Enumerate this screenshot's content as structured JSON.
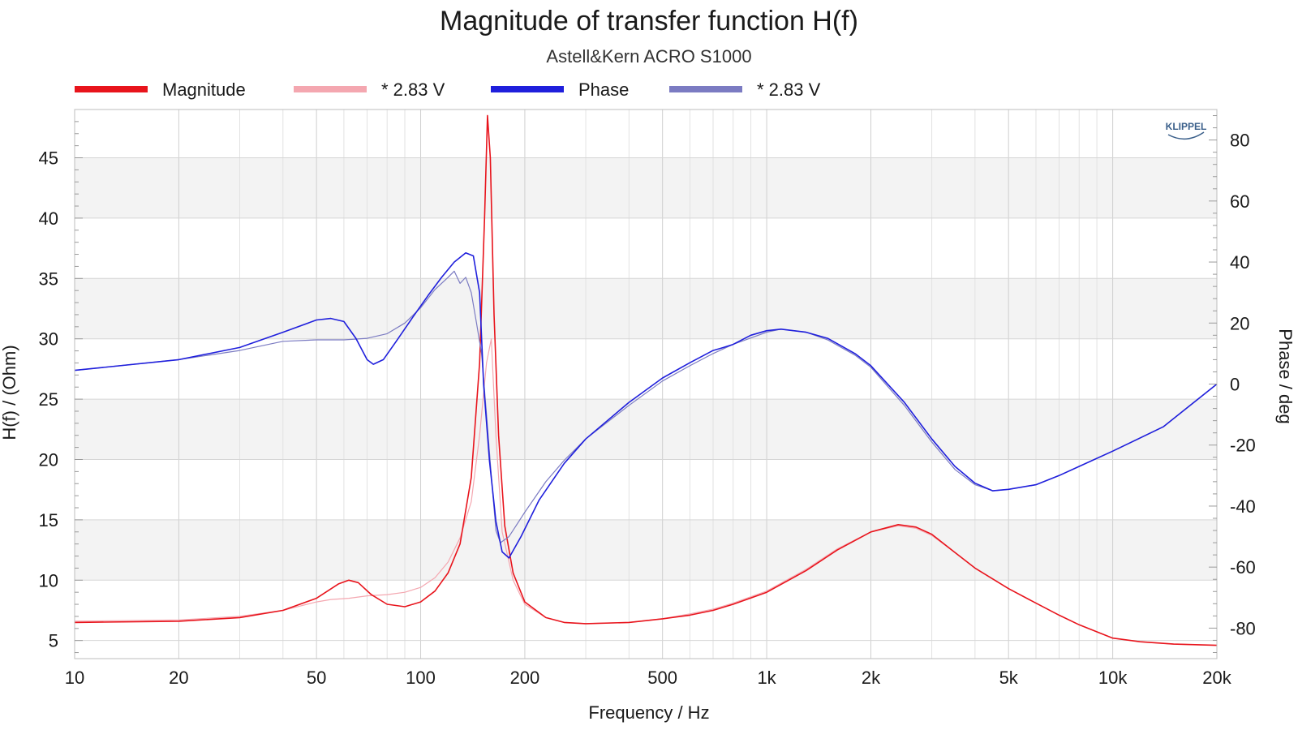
{
  "chart_data": {
    "type": "line",
    "title": "Magnitude of transfer function H(f)",
    "subtitle": "Astell&Kern ACRO S1000",
    "xlabel": "Frequency / Hz",
    "ylabel_left": "H(f) / (Ohm)",
    "ylabel_right": "Phase / deg",
    "x_scale": "log",
    "xlim": [
      10,
      20000
    ],
    "ylim_left": [
      3.5,
      49
    ],
    "ylim_right": [
      -90,
      90
    ],
    "x_ticks": [
      10,
      20,
      50,
      100,
      200,
      500,
      1000,
      2000,
      5000,
      10000,
      20000
    ],
    "x_tick_labels": [
      "10",
      "20",
      "50",
      "100",
      "200",
      "500",
      "1k",
      "2k",
      "5k",
      "10k",
      "20k"
    ],
    "y_ticks_left": [
      5,
      10,
      15,
      20,
      25,
      30,
      35,
      40,
      45
    ],
    "y_ticks_right": [
      -80,
      -60,
      -40,
      -20,
      0,
      20,
      40,
      60,
      80
    ],
    "grid": true,
    "legend_position": "top",
    "logo_text": "KLIPPEL",
    "series": [
      {
        "name": "Magnitude",
        "axis": "left",
        "color": "#e8141c",
        "width": 1.6,
        "points": [
          [
            10,
            6.5
          ],
          [
            20,
            6.6
          ],
          [
            30,
            6.9
          ],
          [
            40,
            7.5
          ],
          [
            50,
            8.5
          ],
          [
            58,
            9.7
          ],
          [
            62,
            10.0
          ],
          [
            66,
            9.8
          ],
          [
            72,
            8.8
          ],
          [
            80,
            8.0
          ],
          [
            90,
            7.8
          ],
          [
            100,
            8.2
          ],
          [
            110,
            9.1
          ],
          [
            120,
            10.6
          ],
          [
            130,
            13.0
          ],
          [
            140,
            18.5
          ],
          [
            148,
            28.0
          ],
          [
            153,
            40.0
          ],
          [
            156,
            48.5
          ],
          [
            159,
            45.0
          ],
          [
            163,
            32.0
          ],
          [
            168,
            22.0
          ],
          [
            175,
            14.5
          ],
          [
            185,
            10.6
          ],
          [
            200,
            8.2
          ],
          [
            230,
            6.9
          ],
          [
            260,
            6.5
          ],
          [
            300,
            6.4
          ],
          [
            400,
            6.5
          ],
          [
            500,
            6.8
          ],
          [
            600,
            7.1
          ],
          [
            700,
            7.5
          ],
          [
            800,
            8.0
          ],
          [
            1000,
            9.0
          ],
          [
            1300,
            10.8
          ],
          [
            1600,
            12.5
          ],
          [
            2000,
            14.0
          ],
          [
            2400,
            14.6
          ],
          [
            2700,
            14.4
          ],
          [
            3000,
            13.8
          ],
          [
            3500,
            12.3
          ],
          [
            4000,
            11.0
          ],
          [
            5000,
            9.3
          ],
          [
            6000,
            8.1
          ],
          [
            7000,
            7.1
          ],
          [
            8000,
            6.3
          ],
          [
            10000,
            5.2
          ],
          [
            12000,
            4.9
          ],
          [
            15000,
            4.7
          ],
          [
            20000,
            4.6
          ]
        ]
      },
      {
        "name": "* 2.83 V",
        "axis": "left",
        "color": "#f4a7b0",
        "width": 1.2,
        "points": [
          [
            10,
            6.6
          ],
          [
            20,
            6.7
          ],
          [
            30,
            7.0
          ],
          [
            40,
            7.5
          ],
          [
            50,
            8.2
          ],
          [
            55,
            8.4
          ],
          [
            62,
            8.5
          ],
          [
            70,
            8.7
          ],
          [
            80,
            8.8
          ],
          [
            90,
            9.0
          ],
          [
            100,
            9.4
          ],
          [
            110,
            10.2
          ],
          [
            120,
            11.5
          ],
          [
            130,
            13.5
          ],
          [
            140,
            16.5
          ],
          [
            148,
            22.0
          ],
          [
            155,
            28.0
          ],
          [
            160,
            30.0
          ],
          [
            165,
            22.0
          ],
          [
            172,
            14.0
          ],
          [
            185,
            10.0
          ],
          [
            200,
            8.0
          ],
          [
            230,
            6.9
          ],
          [
            260,
            6.5
          ],
          [
            300,
            6.4
          ],
          [
            400,
            6.5
          ],
          [
            500,
            6.8
          ],
          [
            600,
            7.2
          ],
          [
            700,
            7.6
          ],
          [
            800,
            8.1
          ],
          [
            1000,
            9.1
          ],
          [
            1300,
            10.9
          ],
          [
            1600,
            12.6
          ],
          [
            2000,
            14.0
          ],
          [
            2400,
            14.5
          ],
          [
            2700,
            14.3
          ],
          [
            3000,
            13.7
          ],
          [
            3500,
            12.3
          ],
          [
            4000,
            11.0
          ],
          [
            5000,
            9.3
          ],
          [
            6000,
            8.1
          ],
          [
            7000,
            7.1
          ],
          [
            8000,
            6.3
          ],
          [
            10000,
            5.2
          ],
          [
            12000,
            4.9
          ],
          [
            15000,
            4.7
          ],
          [
            20000,
            4.6
          ]
        ]
      },
      {
        "name": "Phase",
        "axis": "right",
        "color": "#1f1fdc",
        "width": 1.6,
        "points": [
          [
            10,
            4.5
          ],
          [
            20,
            8
          ],
          [
            30,
            12
          ],
          [
            40,
            17
          ],
          [
            50,
            21
          ],
          [
            55,
            21.5
          ],
          [
            60,
            20.5
          ],
          [
            65,
            15
          ],
          [
            70,
            8
          ],
          [
            73,
            6.5
          ],
          [
            78,
            8
          ],
          [
            85,
            14
          ],
          [
            95,
            22
          ],
          [
            105,
            29
          ],
          [
            115,
            35
          ],
          [
            125,
            40
          ],
          [
            135,
            43
          ],
          [
            142,
            42
          ],
          [
            148,
            30
          ],
          [
            152,
            0
          ],
          [
            158,
            -25
          ],
          [
            165,
            -45
          ],
          [
            172,
            -55
          ],
          [
            180,
            -57
          ],
          [
            195,
            -50
          ],
          [
            220,
            -38
          ],
          [
            260,
            -26
          ],
          [
            300,
            -18
          ],
          [
            400,
            -6
          ],
          [
            500,
            2
          ],
          [
            600,
            7
          ],
          [
            700,
            11
          ],
          [
            750,
            12
          ],
          [
            800,
            13
          ],
          [
            900,
            16
          ],
          [
            1000,
            17.5
          ],
          [
            1100,
            18
          ],
          [
            1300,
            17
          ],
          [
            1500,
            15
          ],
          [
            1800,
            10
          ],
          [
            2000,
            6
          ],
          [
            2500,
            -6
          ],
          [
            3000,
            -18
          ],
          [
            3500,
            -27
          ],
          [
            4000,
            -32.5
          ],
          [
            4500,
            -35
          ],
          [
            5000,
            -34.5
          ],
          [
            6000,
            -33
          ],
          [
            7000,
            -30
          ],
          [
            8000,
            -27
          ],
          [
            10000,
            -22
          ],
          [
            14000,
            -14
          ],
          [
            20000,
            0
          ]
        ]
      },
      {
        "name": "* 2.83 V",
        "axis": "right",
        "color": "#7b7bc2",
        "width": 1.2,
        "points": [
          [
            10,
            4.5
          ],
          [
            20,
            8
          ],
          [
            30,
            11
          ],
          [
            40,
            14
          ],
          [
            50,
            14.5
          ],
          [
            60,
            14.5
          ],
          [
            70,
            15
          ],
          [
            80,
            16.5
          ],
          [
            90,
            20
          ],
          [
            100,
            25
          ],
          [
            110,
            31
          ],
          [
            120,
            35
          ],
          [
            125,
            37
          ],
          [
            130,
            33
          ],
          [
            135,
            35
          ],
          [
            140,
            30
          ],
          [
            145,
            20
          ],
          [
            150,
            10
          ],
          [
            155,
            -10
          ],
          [
            160,
            -30
          ],
          [
            165,
            -48
          ],
          [
            170,
            -52
          ],
          [
            180,
            -50
          ],
          [
            200,
            -42
          ],
          [
            230,
            -32
          ],
          [
            260,
            -25
          ],
          [
            300,
            -18
          ],
          [
            400,
            -7
          ],
          [
            500,
            1
          ],
          [
            600,
            6
          ],
          [
            700,
            10
          ],
          [
            800,
            13
          ],
          [
            1000,
            17
          ],
          [
            1100,
            18
          ],
          [
            1300,
            17
          ],
          [
            1500,
            14.5
          ],
          [
            1800,
            9.5
          ],
          [
            2000,
            5.5
          ],
          [
            2500,
            -7
          ],
          [
            3000,
            -19
          ],
          [
            3500,
            -28
          ],
          [
            4000,
            -33
          ],
          [
            4500,
            -35
          ],
          [
            5000,
            -34.5
          ],
          [
            6000,
            -33
          ],
          [
            7000,
            -30
          ],
          [
            8000,
            -27
          ],
          [
            10000,
            -22
          ],
          [
            14000,
            -14
          ],
          [
            20000,
            0
          ]
        ]
      }
    ]
  }
}
